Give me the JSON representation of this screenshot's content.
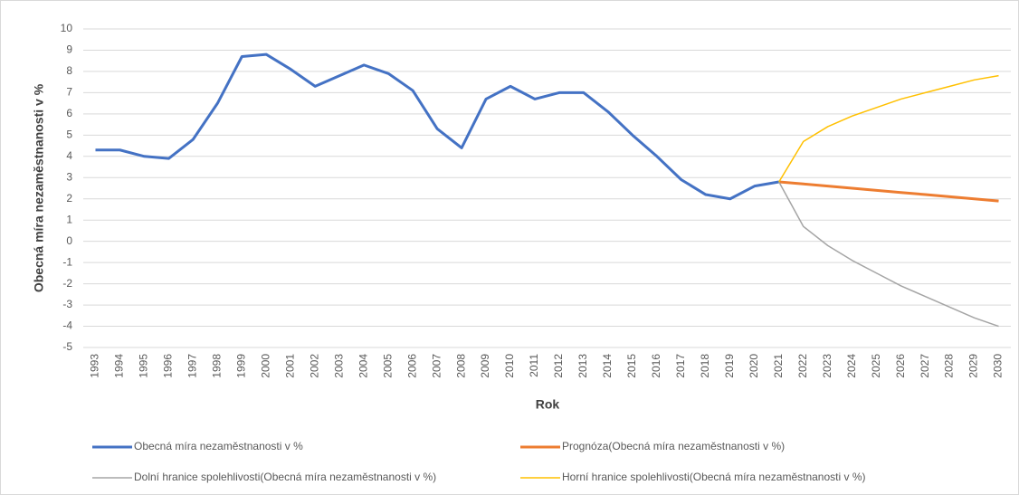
{
  "chart_data": {
    "type": "line",
    "x_label": "Rok",
    "y_label": "Obecná míra nezaměstnanosti v %",
    "categories": [
      "1993",
      "1994",
      "1995",
      "1996",
      "1997",
      "1998",
      "1999",
      "2000",
      "2001",
      "2002",
      "2003",
      "2004",
      "2005",
      "2006",
      "2007",
      "2008",
      "2009",
      "2010",
      "2011",
      "2012",
      "2013",
      "2014",
      "2015",
      "2016",
      "2017",
      "2018",
      "2019",
      "2020",
      "2021",
      "2022",
      "2023",
      "2024",
      "2025",
      "2026",
      "2027",
      "2028",
      "2029",
      "2030"
    ],
    "series": [
      {
        "name": "Obecná míra nezaměstnanosti v %",
        "color": "#4472c4",
        "values": [
          4.3,
          4.3,
          4.0,
          3.9,
          4.8,
          6.5,
          8.7,
          8.8,
          8.1,
          7.3,
          7.8,
          8.3,
          7.9,
          7.1,
          5.3,
          4.4,
          6.7,
          7.3,
          6.7,
          7.0,
          7.0,
          6.1,
          5.0,
          4.0,
          2.9,
          2.2,
          2.0,
          2.6,
          2.8,
          null,
          null,
          null,
          null,
          null,
          null,
          null,
          null,
          null
        ]
      },
      {
        "name": "Prognóza(Obecná míra nezaměstnanosti v %)",
        "color": "#ed7d31",
        "values": [
          null,
          null,
          null,
          null,
          null,
          null,
          null,
          null,
          null,
          null,
          null,
          null,
          null,
          null,
          null,
          null,
          null,
          null,
          null,
          null,
          null,
          null,
          null,
          null,
          null,
          null,
          null,
          null,
          2.8,
          2.7,
          2.6,
          2.5,
          2.4,
          2.3,
          2.2,
          2.1,
          2.0,
          1.9
        ]
      },
      {
        "name": "Dolní hranice spolehlivosti(Obecná míra nezaměstnanosti v %)",
        "color": "#a5a5a5",
        "values": [
          null,
          null,
          null,
          null,
          null,
          null,
          null,
          null,
          null,
          null,
          null,
          null,
          null,
          null,
          null,
          null,
          null,
          null,
          null,
          null,
          null,
          null,
          null,
          null,
          null,
          null,
          null,
          null,
          2.8,
          0.7,
          -0.2,
          -0.9,
          -1.5,
          -2.1,
          -2.6,
          -3.1,
          -3.6,
          -4.0
        ]
      },
      {
        "name": "Horní hranice spolehlivosti(Obecná míra nezaměstnanosti v %)",
        "color": "#ffc000",
        "values": [
          null,
          null,
          null,
          null,
          null,
          null,
          null,
          null,
          null,
          null,
          null,
          null,
          null,
          null,
          null,
          null,
          null,
          null,
          null,
          null,
          null,
          null,
          null,
          null,
          null,
          null,
          null,
          null,
          2.8,
          4.7,
          5.4,
          5.9,
          6.3,
          6.7,
          7.0,
          7.3,
          7.6,
          7.8
        ]
      }
    ],
    "ylim": [
      -5,
      10
    ],
    "yticks": [
      -5,
      -4,
      -3,
      -2,
      -1,
      0,
      1,
      2,
      3,
      4,
      5,
      6,
      7,
      8,
      9,
      10
    ],
    "grid": true,
    "legend": "bottom"
  }
}
